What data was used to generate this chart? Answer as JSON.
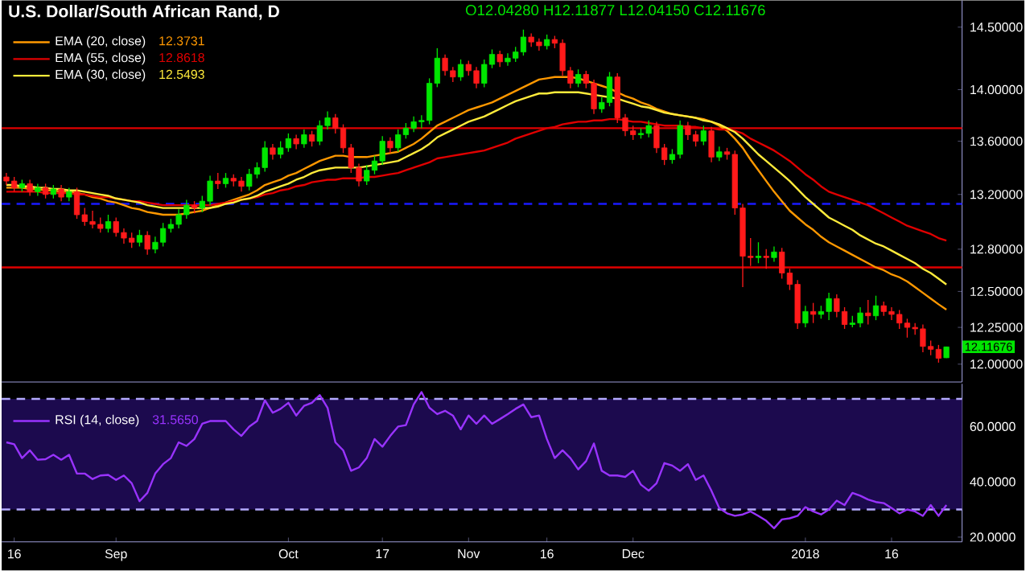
{
  "chart_data": [
    {
      "type": "candlestick",
      "title": "U.S. Dollar/South African Rand, D",
      "log": "y",
      "legend": "top left",
      "categories": [
        null,
        null,
        null,
        null,
        null,
        null,
        null,
        null,
        null,
        null,
        null,
        null,
        null,
        null,
        null,
        null,
        null,
        null,
        null,
        null,
        null,
        null,
        null,
        null,
        null,
        null,
        null,
        null,
        null,
        null,
        null,
        null,
        null,
        null,
        null,
        null,
        null,
        null,
        null,
        null,
        null,
        null,
        null,
        null,
        null,
        null,
        null,
        null,
        null,
        null,
        null,
        null,
        null,
        null,
        null,
        null,
        null,
        null,
        null,
        null,
        null,
        null,
        null,
        null,
        null,
        null,
        null,
        null,
        null,
        null,
        null,
        null,
        null,
        null,
        null,
        null,
        null,
        null,
        null,
        null,
        null,
        null,
        null,
        null,
        null,
        null,
        null,
        null,
        null,
        null,
        null,
        null,
        null,
        null,
        null,
        null,
        null,
        null,
        null,
        null,
        null,
        null,
        null,
        null,
        null,
        null,
        null,
        null,
        null,
        null,
        null,
        null,
        null,
        null,
        null,
        null,
        null,
        null,
        null,
        null,
        null
      ],
      "ylim": [
        11.88,
        14.72
      ],
      "yticks": [
        {
          "value": 12.0,
          "label": "12.00000"
        },
        {
          "value": 12.25,
          "label": "12.25000"
        },
        {
          "value": 12.5,
          "label": "12.50000"
        },
        {
          "value": 12.8,
          "label": "12.80000"
        },
        {
          "value": 13.2,
          "label": "13.20000"
        },
        {
          "value": 13.6,
          "label": "13.60000"
        },
        {
          "value": 14.0,
          "label": "14.00000"
        },
        {
          "value": 14.5,
          "label": "14.50000"
        }
      ],
      "ohlc": [
        [
          13.33,
          13.36,
          13.27,
          13.3
        ],
        [
          13.3,
          13.33,
          13.22,
          13.25
        ],
        [
          13.25,
          13.31,
          13.22,
          13.28
        ],
        [
          13.28,
          13.31,
          13.19,
          13.22
        ],
        [
          13.22,
          13.28,
          13.19,
          13.25
        ],
        [
          13.25,
          13.28,
          13.17,
          13.2
        ],
        [
          13.2,
          13.27,
          13.17,
          13.24
        ],
        [
          13.24,
          13.27,
          13.15,
          13.18
        ],
        [
          13.18,
          13.25,
          13.15,
          13.22
        ],
        [
          13.22,
          13.25,
          13.02,
          13.05
        ],
        [
          13.05,
          13.1,
          12.97,
          13.0
        ],
        [
          13.0,
          13.08,
          12.95,
          12.98
        ],
        [
          12.98,
          13.03,
          12.92,
          12.95
        ],
        [
          12.95,
          13.05,
          12.92,
          13.0
        ],
        [
          13.0,
          13.03,
          12.89,
          12.92
        ],
        [
          12.92,
          12.95,
          12.84,
          12.88
        ],
        [
          12.88,
          12.92,
          12.81,
          12.85
        ],
        [
          12.85,
          12.94,
          12.82,
          12.9
        ],
        [
          12.9,
          12.93,
          12.76,
          12.8
        ],
        [
          12.8,
          12.89,
          12.77,
          12.85
        ],
        [
          12.85,
          12.99,
          12.82,
          12.95
        ],
        [
          12.95,
          13.02,
          12.92,
          12.98
        ],
        [
          12.98,
          13.09,
          12.95,
          13.05
        ],
        [
          13.05,
          13.16,
          13.02,
          13.12
        ],
        [
          13.12,
          13.15,
          13.06,
          13.1
        ],
        [
          13.1,
          13.19,
          13.07,
          13.15
        ],
        [
          13.15,
          13.34,
          13.12,
          13.3
        ],
        [
          13.3,
          13.36,
          13.24,
          13.28
        ],
        [
          13.28,
          13.36,
          13.25,
          13.32
        ],
        [
          13.32,
          13.35,
          13.26,
          13.3
        ],
        [
          13.3,
          13.33,
          13.22,
          13.26
        ],
        [
          13.26,
          13.39,
          13.23,
          13.35
        ],
        [
          13.35,
          13.44,
          13.32,
          13.4
        ],
        [
          13.4,
          13.6,
          13.37,
          13.55
        ],
        [
          13.55,
          13.58,
          13.46,
          13.5
        ],
        [
          13.5,
          13.6,
          13.47,
          13.55
        ],
        [
          13.55,
          13.66,
          13.52,
          13.62
        ],
        [
          13.62,
          13.65,
          13.54,
          13.58
        ],
        [
          13.58,
          13.69,
          13.55,
          13.65
        ],
        [
          13.65,
          13.68,
          13.56,
          13.6
        ],
        [
          13.6,
          13.76,
          13.57,
          13.72
        ],
        [
          13.72,
          13.83,
          13.69,
          13.78
        ],
        [
          13.78,
          13.81,
          13.66,
          13.7
        ],
        [
          13.7,
          13.73,
          13.51,
          13.55
        ],
        [
          13.55,
          13.58,
          13.36,
          13.4
        ],
        [
          13.4,
          13.43,
          13.26,
          13.3
        ],
        [
          13.3,
          13.42,
          13.27,
          13.38
        ],
        [
          13.38,
          13.49,
          13.35,
          13.45
        ],
        [
          13.45,
          13.64,
          13.42,
          13.6
        ],
        [
          13.6,
          13.63,
          13.51,
          13.55
        ],
        [
          13.55,
          13.69,
          13.52,
          13.65
        ],
        [
          13.65,
          13.74,
          13.62,
          13.7
        ],
        [
          13.7,
          13.79,
          13.67,
          13.75
        ],
        [
          13.75,
          13.8,
          13.7,
          13.76
        ],
        [
          13.76,
          14.09,
          13.73,
          14.05
        ],
        [
          14.05,
          14.33,
          14.02,
          14.25
        ],
        [
          14.25,
          14.28,
          14.11,
          14.15
        ],
        [
          14.15,
          14.18,
          14.06,
          14.1
        ],
        [
          14.1,
          14.24,
          14.07,
          14.2
        ],
        [
          14.2,
          14.23,
          14.11,
          14.15
        ],
        [
          14.15,
          14.18,
          14.01,
          14.05
        ],
        [
          14.05,
          14.24,
          14.02,
          14.2
        ],
        [
          14.2,
          14.32,
          14.17,
          14.28
        ],
        [
          14.28,
          14.31,
          14.18,
          14.22
        ],
        [
          14.22,
          14.29,
          14.19,
          14.25
        ],
        [
          14.25,
          14.34,
          14.22,
          14.3
        ],
        [
          14.3,
          14.48,
          14.27,
          14.42
        ],
        [
          14.42,
          14.45,
          14.34,
          14.38
        ],
        [
          14.38,
          14.41,
          14.31,
          14.35
        ],
        [
          14.35,
          14.44,
          14.32,
          14.4
        ],
        [
          14.4,
          14.43,
          14.33,
          14.37
        ],
        [
          14.37,
          14.4,
          14.11,
          14.15
        ],
        [
          14.15,
          14.18,
          14.01,
          14.05
        ],
        [
          14.05,
          14.16,
          14.02,
          14.12
        ],
        [
          14.12,
          14.15,
          14.01,
          14.05
        ],
        [
          14.05,
          14.08,
          13.81,
          13.85
        ],
        [
          13.85,
          13.94,
          13.82,
          13.9
        ],
        [
          13.9,
          14.14,
          13.87,
          14.1
        ],
        [
          14.1,
          14.13,
          13.74,
          13.78
        ],
        [
          13.78,
          13.81,
          13.64,
          13.68
        ],
        [
          13.68,
          13.72,
          13.61,
          13.65
        ],
        [
          13.65,
          13.7,
          13.62,
          13.66
        ],
        [
          13.66,
          13.76,
          13.63,
          13.72
        ],
        [
          13.72,
          13.75,
          13.51,
          13.55
        ],
        [
          13.55,
          13.58,
          13.42,
          13.46
        ],
        [
          13.46,
          13.54,
          13.43,
          13.5
        ],
        [
          13.5,
          13.76,
          13.47,
          13.72
        ],
        [
          13.72,
          13.75,
          13.61,
          13.65
        ],
        [
          13.65,
          13.68,
          13.56,
          13.6
        ],
        [
          13.6,
          13.72,
          13.57,
          13.68
        ],
        [
          13.68,
          13.71,
          13.44,
          13.48
        ],
        [
          13.48,
          13.56,
          13.45,
          13.52
        ],
        [
          13.52,
          13.55,
          13.46,
          13.5
        ],
        [
          13.5,
          13.53,
          13.05,
          13.1
        ],
        [
          13.1,
          13.13,
          12.53,
          12.75
        ],
        [
          12.75,
          12.88,
          12.68,
          12.74
        ],
        [
          12.74,
          12.85,
          12.7,
          12.75
        ],
        [
          12.75,
          12.8,
          12.66,
          12.74
        ],
        [
          12.74,
          12.82,
          12.71,
          12.78
        ],
        [
          12.78,
          12.81,
          12.59,
          12.63
        ],
        [
          12.63,
          12.66,
          12.51,
          12.55
        ],
        [
          12.55,
          12.58,
          12.24,
          12.28
        ],
        [
          12.28,
          12.4,
          12.25,
          12.36
        ],
        [
          12.36,
          12.42,
          12.28,
          12.34
        ],
        [
          12.34,
          12.4,
          12.31,
          12.36
        ],
        [
          12.36,
          12.49,
          12.3,
          12.45
        ],
        [
          12.45,
          12.48,
          12.32,
          12.36
        ],
        [
          12.36,
          12.39,
          12.24,
          12.27
        ],
        [
          12.27,
          12.33,
          12.25,
          12.28
        ],
        [
          12.28,
          12.39,
          12.25,
          12.35
        ],
        [
          12.35,
          12.44,
          12.27,
          12.33
        ],
        [
          12.33,
          12.47,
          12.3,
          12.4
        ],
        [
          12.4,
          12.43,
          12.33,
          12.36
        ],
        [
          12.36,
          12.39,
          12.3,
          12.34
        ],
        [
          12.34,
          12.37,
          12.24,
          12.28
        ],
        [
          12.28,
          12.31,
          12.18,
          12.25
        ],
        [
          12.25,
          12.28,
          12.2,
          12.24
        ],
        [
          12.24,
          12.27,
          12.08,
          12.12
        ],
        [
          12.12,
          12.16,
          12.06,
          12.1
        ],
        [
          12.1,
          12.13,
          12.01,
          12.04
        ],
        [
          12.0428,
          12.11877,
          12.0415,
          12.11676
        ]
      ],
      "series": [
        {
          "name": "EMA (20, close)",
          "type": "line",
          "color": "#ff9800",
          "values": [
            13.25,
            13.25,
            13.25,
            13.24,
            13.24,
            13.23,
            13.23,
            13.22,
            13.22,
            13.21,
            13.2,
            13.18,
            13.17,
            13.15,
            13.14,
            13.12,
            13.1,
            13.09,
            13.07,
            13.06,
            13.05,
            13.05,
            13.05,
            13.06,
            13.07,
            13.08,
            13.1,
            13.12,
            13.14,
            13.16,
            13.18,
            13.2,
            13.23,
            13.27,
            13.29,
            13.31,
            13.34,
            13.36,
            13.39,
            13.42,
            13.45,
            13.47,
            13.49,
            13.49,
            13.48,
            13.48,
            13.48,
            13.49,
            13.5,
            13.51,
            13.52,
            13.55,
            13.58,
            13.62,
            13.67,
            13.72,
            13.75,
            13.78,
            13.81,
            13.84,
            13.86,
            13.88,
            13.9,
            13.93,
            13.96,
            13.99,
            14.02,
            14.05,
            14.08,
            14.09,
            14.1,
            14.1,
            14.1,
            14.09,
            14.07,
            14.05,
            14.03,
            14.01,
            13.98,
            13.95,
            13.93,
            13.9,
            13.88,
            13.85,
            13.83,
            13.81,
            13.8,
            13.79,
            13.78,
            13.77,
            13.75,
            13.72,
            13.68,
            13.62,
            13.55,
            13.46,
            13.38,
            13.3,
            13.22,
            13.15,
            13.08,
            13.03,
            12.98,
            12.94,
            12.89,
            12.85,
            12.82,
            12.79,
            12.76,
            12.73,
            12.7,
            12.67,
            12.65,
            12.62,
            12.6,
            12.57,
            12.53,
            12.49,
            12.45,
            12.41,
            12.3731
          ]
        },
        {
          "name": "EMA (55, close)",
          "type": "line",
          "color": "#e00000",
          "values": [
            13.22,
            13.22,
            13.22,
            13.22,
            13.22,
            13.21,
            13.21,
            13.21,
            13.21,
            13.2,
            13.2,
            13.19,
            13.18,
            13.18,
            13.17,
            13.16,
            13.15,
            13.15,
            13.14,
            13.13,
            13.12,
            13.12,
            13.12,
            13.12,
            13.12,
            13.12,
            13.12,
            13.13,
            13.14,
            13.15,
            13.16,
            13.17,
            13.18,
            13.2,
            13.21,
            13.23,
            13.24,
            13.26,
            13.27,
            13.29,
            13.3,
            13.31,
            13.31,
            13.32,
            13.32,
            13.32,
            13.33,
            13.33,
            13.34,
            13.35,
            13.36,
            13.38,
            13.4,
            13.42,
            13.44,
            13.47,
            13.48,
            13.49,
            13.5,
            13.51,
            13.52,
            13.53,
            13.55,
            13.57,
            13.59,
            13.62,
            13.64,
            13.66,
            13.68,
            13.7,
            13.71,
            13.73,
            13.74,
            13.75,
            13.75,
            13.76,
            13.76,
            13.77,
            13.77,
            13.76,
            13.75,
            13.75,
            13.74,
            13.73,
            13.72,
            13.72,
            13.72,
            13.71,
            13.71,
            13.7,
            13.7,
            13.69,
            13.69,
            13.68,
            13.66,
            13.62,
            13.59,
            13.56,
            13.53,
            13.49,
            13.45,
            13.4,
            13.35,
            13.31,
            13.26,
            13.22,
            13.2,
            13.18,
            13.16,
            13.14,
            13.12,
            13.09,
            13.06,
            13.03,
            13.0,
            12.97,
            12.95,
            12.93,
            12.91,
            12.88,
            12.8618
          ]
        },
        {
          "name": "EMA (30, close)",
          "type": "line",
          "color": "#ffeb3b",
          "values": [
            13.27,
            13.27,
            13.26,
            13.26,
            13.25,
            13.25,
            13.24,
            13.24,
            13.23,
            13.23,
            13.22,
            13.21,
            13.2,
            13.19,
            13.17,
            13.16,
            13.15,
            13.14,
            13.12,
            13.11,
            13.1,
            13.1,
            13.1,
            13.1,
            13.1,
            13.1,
            13.1,
            13.11,
            13.13,
            13.14,
            13.16,
            13.17,
            13.19,
            13.22,
            13.24,
            13.26,
            13.28,
            13.31,
            13.33,
            13.36,
            13.38,
            13.39,
            13.4,
            13.4,
            13.4,
            13.4,
            13.41,
            13.42,
            13.43,
            13.44,
            13.45,
            13.48,
            13.51,
            13.54,
            13.58,
            13.63,
            13.66,
            13.69,
            13.72,
            13.75,
            13.77,
            13.79,
            13.82,
            13.85,
            13.88,
            13.91,
            13.93,
            13.95,
            13.97,
            13.97,
            13.98,
            13.98,
            13.98,
            13.98,
            13.97,
            13.96,
            13.95,
            13.94,
            13.93,
            13.91,
            13.89,
            13.87,
            13.86,
            13.84,
            13.82,
            13.81,
            13.8,
            13.79,
            13.78,
            13.76,
            13.75,
            13.73,
            13.7,
            13.67,
            13.62,
            13.56,
            13.5,
            13.45,
            13.4,
            13.35,
            13.3,
            13.24,
            13.18,
            13.13,
            13.08,
            13.03,
            13.0,
            12.97,
            12.94,
            12.9,
            12.87,
            12.84,
            12.82,
            12.79,
            12.76,
            12.73,
            12.7,
            12.66,
            12.63,
            12.59,
            12.5493
          ]
        }
      ],
      "ref_lines": [
        {
          "axis": "y",
          "value": 13.7,
          "color": "#e00000"
        },
        {
          "axis": "y",
          "value": 12.67,
          "color": "#e00000"
        },
        {
          "axis": "y",
          "value": 13.13,
          "color": "#1a1aff",
          "line_style": "dashed"
        }
      ],
      "annotations": [
        "O12.04280  H12.11877  L12.04150  C12.11676",
        "12.3731",
        "12.8618",
        "12.5493",
        "12.11676"
      ]
    },
    {
      "type": "line",
      "legend": "top left",
      "categories": [
        null,
        "16",
        null,
        null,
        null,
        null,
        null,
        null,
        null,
        null,
        null,
        null,
        null,
        null,
        "Sep",
        null,
        null,
        null,
        null,
        null,
        null,
        null,
        null,
        null,
        null,
        null,
        null,
        null,
        null,
        null,
        null,
        null,
        null,
        null,
        null,
        null,
        "Oct",
        null,
        null,
        null,
        null,
        null,
        null,
        null,
        null,
        null,
        null,
        null,
        "17",
        null,
        null,
        null,
        null,
        null,
        null,
        null,
        null,
        null,
        null,
        "Nov",
        null,
        null,
        null,
        null,
        null,
        null,
        null,
        null,
        null,
        "16",
        null,
        null,
        null,
        null,
        null,
        null,
        null,
        null,
        null,
        null,
        "Dec",
        null,
        null,
        null,
        null,
        null,
        null,
        null,
        null,
        null,
        null,
        null,
        null,
        null,
        null,
        null,
        null,
        null,
        null,
        null,
        null,
        null,
        "2018",
        null,
        null,
        null,
        null,
        null,
        null,
        null,
        null,
        null,
        null,
        "16",
        null,
        null,
        null,
        null,
        null,
        null,
        null
      ],
      "ylim": [
        18.3,
        75.5
      ],
      "yticks": [
        {
          "value": 20,
          "label": "20.0000"
        },
        {
          "value": 40,
          "label": "40.0000"
        },
        {
          "value": 60,
          "label": "60.0000"
        }
      ],
      "series": [
        {
          "name": "RSI (14, close)",
          "color": "#9933ff",
          "values": [
            54.3,
            53.6,
            48.6,
            51.4,
            48.0,
            48.2,
            49.8,
            48.0,
            49.8,
            43.0,
            43.0,
            41.0,
            42.3,
            42.5,
            40.7,
            42.3,
            39.5,
            33.0,
            36.0,
            43.0,
            46.4,
            48.6,
            54.3,
            53.0,
            55.5,
            61.0,
            62.0,
            62.0,
            62.0,
            59.0,
            56.6,
            60.0,
            62.0,
            69.5,
            65.0,
            66.4,
            68.6,
            64.0,
            67.5,
            68.6,
            71.4,
            66.8,
            54.3,
            51.4,
            44.0,
            45.2,
            48.6,
            55.5,
            52.7,
            56.6,
            60.0,
            60.5,
            68.0,
            72.5,
            66.8,
            64.5,
            65.7,
            64.0,
            59.0,
            64.0,
            61.0,
            64.0,
            61.0,
            62.7,
            64.5,
            66.4,
            68.0,
            63.4,
            64.0,
            55.5,
            48.6,
            51.4,
            48.6,
            44.5,
            47.5,
            53.9,
            44.0,
            42.3,
            42.3,
            41.8,
            44.0,
            39.0,
            36.8,
            39.5,
            46.8,
            45.9,
            44.0,
            46.4,
            40.7,
            42.3,
            36.8,
            30.5,
            28.6,
            27.7,
            28.2,
            29.3,
            27.7,
            25.9,
            23.2,
            26.4,
            26.8,
            27.7,
            30.9,
            29.3,
            28.2,
            30.0,
            33.2,
            31.6,
            36.0,
            35.0,
            33.6,
            32.7,
            32.3,
            30.5,
            28.6,
            30.0,
            29.3,
            27.7,
            31.6,
            27.7,
            31.6
          ]
        }
      ],
      "ref_lines": [
        {
          "axis": "y",
          "value": 70,
          "color": "#b4aaff",
          "line_style": "dashed"
        },
        {
          "axis": "y",
          "value": 30,
          "color": "#b4aaff",
          "line_style": "dashed"
        }
      ],
      "bands": [
        {
          "axis": "y",
          "from": 30,
          "to": 70,
          "color": "#1c0a4e"
        }
      ],
      "annotations": [
        "31.5650"
      ]
    }
  ]
}
